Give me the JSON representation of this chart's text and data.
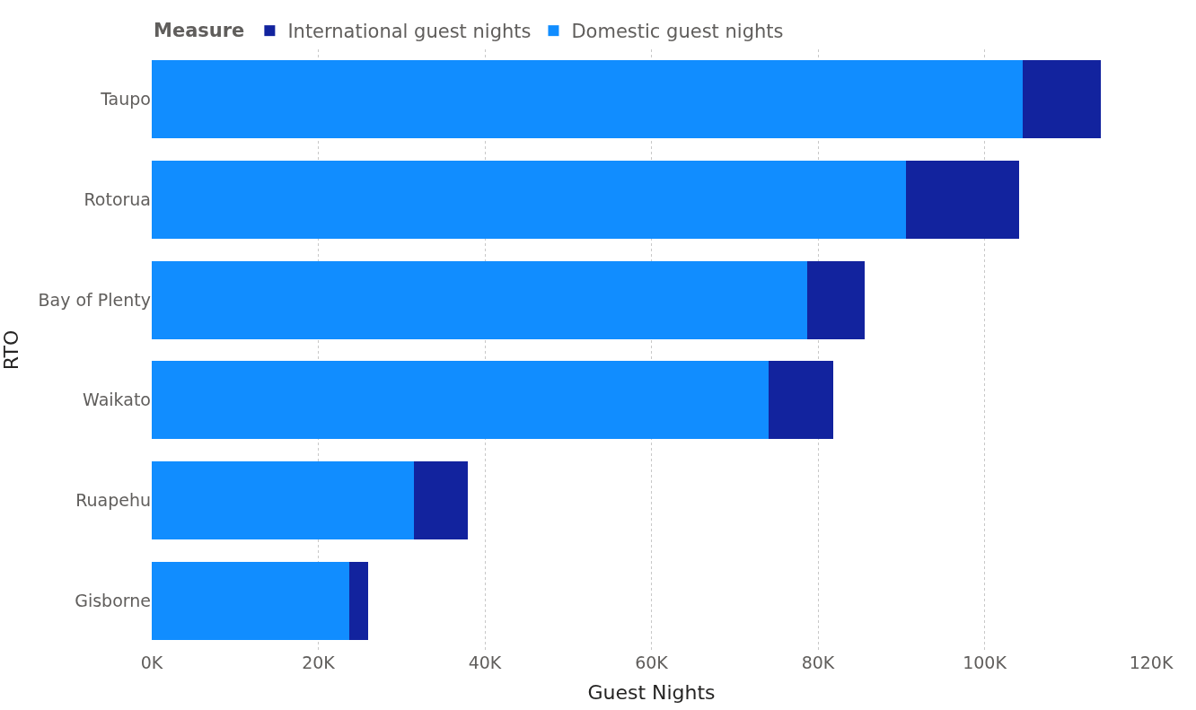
{
  "chart_data": {
    "type": "bar",
    "orientation": "horizontal",
    "stacked": true,
    "xlabel": "Guest Nights",
    "ylabel": "RTO",
    "legend_title": "Measure",
    "categories": [
      "Taupo",
      "Rotorua",
      "Bay of Plenty",
      "Waikato",
      "Ruapehu",
      "Gisborne"
    ],
    "series": [
      {
        "name": "Domestic guest nights",
        "color": "#118dff",
        "values": [
          104600,
          90600,
          78700,
          74100,
          31500,
          23700
        ]
      },
      {
        "name": "International guest nights",
        "color": "#12239e",
        "values": [
          9400,
          13500,
          6900,
          7700,
          6400,
          2300
        ]
      }
    ],
    "xlim": [
      0,
      120000
    ],
    "xticks": [
      {
        "value": 0,
        "label": "0K"
      },
      {
        "value": 20000,
        "label": "20K"
      },
      {
        "value": 40000,
        "label": "40K"
      },
      {
        "value": 60000,
        "label": "60K"
      },
      {
        "value": 80000,
        "label": "80K"
      },
      {
        "value": 100000,
        "label": "100K"
      },
      {
        "value": 120000,
        "label": "120K"
      }
    ],
    "grid": "x",
    "legend": "top left"
  }
}
